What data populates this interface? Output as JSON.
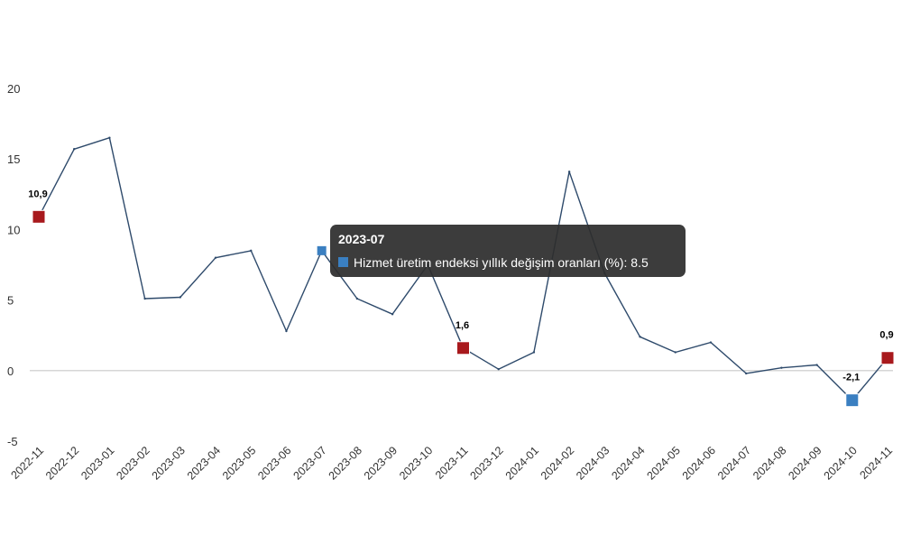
{
  "chart_data": {
    "type": "line",
    "x": [
      "2022-11",
      "2022-12",
      "2023-01",
      "2023-02",
      "2023-03",
      "2023-04",
      "2023-05",
      "2023-06",
      "2023-07",
      "2023-08",
      "2023-09",
      "2023-10",
      "2023-11",
      "2023-12",
      "2024-01",
      "2024-02",
      "2024-03",
      "2024-04",
      "2024-05",
      "2024-06",
      "2024-07",
      "2024-08",
      "2024-09",
      "2024-10",
      "2024-11"
    ],
    "series": [
      {
        "name": "Hizmet üretim endeksi yıllık değişim oranları (%)",
        "values": [
          10.9,
          15.7,
          16.5,
          5.1,
          5.2,
          8.0,
          8.5,
          2.8,
          8.5,
          5.1,
          4.0,
          7.5,
          1.6,
          0.1,
          1.3,
          14.1,
          6.9,
          2.4,
          1.3,
          2.0,
          -0.2,
          0.2,
          0.4,
          -2.1,
          0.9
        ],
        "color": "#2e4a6b"
      }
    ],
    "ylim": [
      -5,
      20
    ],
    "yticks": [
      "20",
      "15",
      "10",
      "5",
      "0",
      "-5"
    ],
    "markers": [
      {
        "index": 0,
        "label": "10,9",
        "color": "#a8191d"
      },
      {
        "index": 12,
        "label": "1,6",
        "color": "#a8191d"
      },
      {
        "index": 23,
        "label": "-2,1",
        "color": "#3a7fc1"
      },
      {
        "index": 24,
        "label": "0,9",
        "color": "#a8191d"
      }
    ],
    "hover_marker": {
      "index": 8,
      "color": "#3a7fc1"
    },
    "tooltip": {
      "title": "2023-07",
      "series_name": "Hizmet üretim endeksi yıllık değişim oranları (%)",
      "value": "8.5",
      "text": "Hizmet üretim endeksi yıllık değişim oranları (%): 8.5",
      "swatch_color": "#3a7fc1"
    },
    "title": "",
    "xlabel": "",
    "ylabel": "",
    "grid": false,
    "zero_line": true
  }
}
